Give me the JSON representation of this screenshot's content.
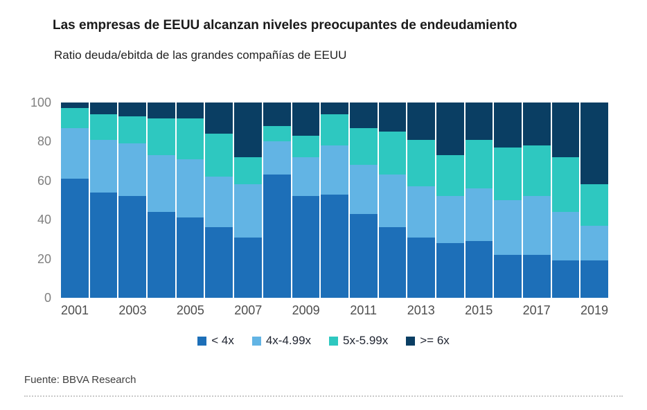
{
  "header": {
    "title": "Las empresas de EEUU alcanzan niveles preocupantes de endeudamiento",
    "subtitle": "Ratio deuda/ebitda de las grandes compañías de EEUU"
  },
  "footer": {
    "source": "Fuente: BBVA Research"
  },
  "chart_data": {
    "type": "bar",
    "variant": "stacked-100-percent",
    "title": "Ratio deuda/ebitda de las grandes compañías de EEUU",
    "xlabel": "",
    "ylabel": "",
    "ylim": [
      0,
      100
    ],
    "yticks": [
      0,
      20,
      40,
      60,
      80,
      100
    ],
    "grid": false,
    "legend_position": "bottom",
    "categories": [
      2001,
      2002,
      2003,
      2004,
      2005,
      2006,
      2007,
      2008,
      2009,
      2010,
      2011,
      2012,
      2013,
      2014,
      2015,
      2016,
      2017,
      2018,
      2019
    ],
    "xticks": [
      "2001",
      "2003",
      "2005",
      "2007",
      "2009",
      "2011",
      "2013",
      "2015",
      "2017",
      "2019"
    ],
    "series": [
      {
        "name": "< 4x",
        "color": "#1d6fb8",
        "values": [
          61,
          54,
          52,
          44,
          41,
          36,
          31,
          63,
          52,
          53,
          43,
          36,
          31,
          28,
          29,
          22,
          22,
          19,
          19
        ]
      },
      {
        "name": "4x-4.99x",
        "color": "#62b4e4",
        "values": [
          26,
          27,
          27,
          29,
          30,
          26,
          27,
          17,
          20,
          25,
          25,
          27,
          26,
          24,
          27,
          28,
          30,
          25,
          18
        ]
      },
      {
        "name": "5x-5.99x",
        "color": "#2ec8c0",
        "values": [
          10,
          13,
          14,
          19,
          21,
          22,
          14,
          8,
          11,
          16,
          19,
          22,
          24,
          21,
          25,
          27,
          26,
          28,
          21
        ]
      },
      {
        "name": ">= 6x",
        "color": "#0a3e63",
        "values": [
          3,
          6,
          7,
          8,
          8,
          16,
          28,
          12,
          17,
          6,
          13,
          15,
          19,
          27,
          19,
          23,
          22,
          28,
          42
        ]
      }
    ]
  }
}
